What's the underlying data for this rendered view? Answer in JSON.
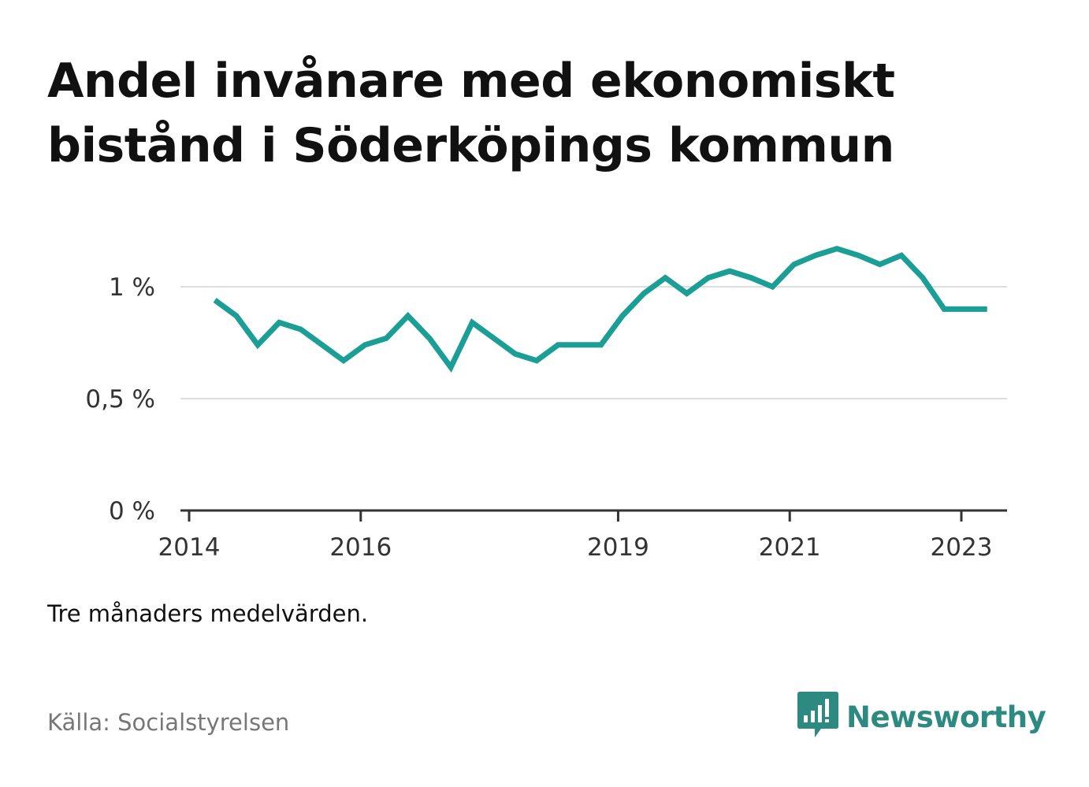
{
  "title": "Andel invånare med ekonomiskt bistånd i Söderköpings kommun",
  "note": "Tre månaders medelvärden.",
  "source": "Källa: Socialstyrelsen",
  "brand": {
    "name": "Newsworthy",
    "color": "#2d8a80",
    "icon": "bar-chart-speech-bubble-icon"
  },
  "chart_data": {
    "type": "line",
    "title": "Andel invånare med ekonomiskt bistånd i Söderköpings kommun",
    "xlabel": "",
    "ylabel": "",
    "line_color": "#1a9e96",
    "grid": true,
    "xlim": [
      2014.0,
      2024.0
    ],
    "ylim": [
      0,
      1.3
    ],
    "y_ticks": [
      {
        "value": 0,
        "label": "0 %"
      },
      {
        "value": 0.5,
        "label": "0,5 %"
      },
      {
        "value": 1,
        "label": "1 %"
      }
    ],
    "x_ticks": [
      {
        "value": 2014.0,
        "label": "2014"
      },
      {
        "value": 2016.0,
        "label": "2016"
      },
      {
        "value": 2019.0,
        "label": "2019"
      },
      {
        "value": 2021.0,
        "label": "2021"
      },
      {
        "value": 2023.0,
        "label": "2023"
      }
    ],
    "series": [
      {
        "name": "",
        "x": [
          2014.3,
          2014.55,
          2014.8,
          2015.05,
          2015.3,
          2015.55,
          2015.8,
          2016.05,
          2016.3,
          2016.55,
          2016.8,
          2017.05,
          2017.3,
          2017.55,
          2017.8,
          2018.05,
          2018.3,
          2018.55,
          2018.8,
          2019.05,
          2019.3,
          2019.55,
          2019.8,
          2020.05,
          2020.3,
          2020.55,
          2020.8,
          2021.05,
          2021.3,
          2021.55,
          2021.8,
          2022.05,
          2022.3,
          2022.55,
          2022.8,
          2023.05,
          2023.3
        ],
        "values": [
          0.94,
          0.87,
          0.74,
          0.84,
          0.81,
          0.74,
          0.67,
          0.74,
          0.77,
          0.87,
          0.77,
          0.64,
          0.84,
          0.77,
          0.7,
          0.67,
          0.74,
          0.74,
          0.74,
          0.87,
          0.97,
          1.04,
          0.97,
          1.04,
          1.07,
          1.04,
          1.0,
          1.1,
          1.14,
          1.17,
          1.14,
          1.1,
          1.14,
          1.04,
          0.9,
          0.9,
          0.9
        ]
      }
    ]
  }
}
